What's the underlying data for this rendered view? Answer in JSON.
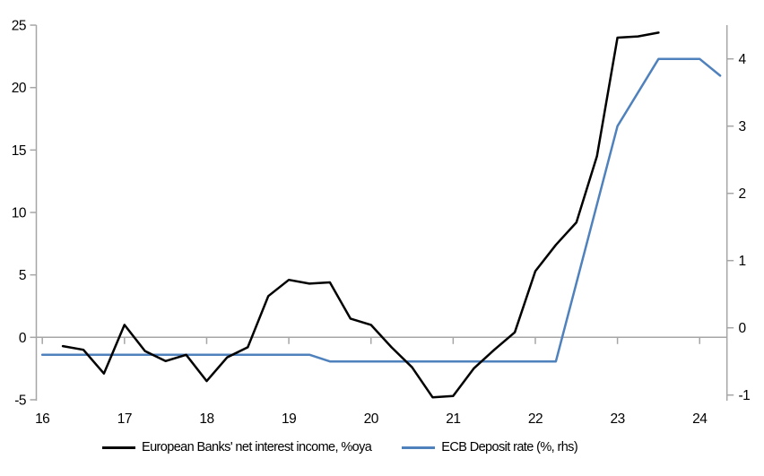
{
  "chart_data": {
    "type": "line",
    "title": "",
    "x_axis": {
      "tick_labels": [
        "16",
        "17",
        "18",
        "19",
        "20",
        "21",
        "22",
        "23",
        "24"
      ],
      "tick_values": [
        16,
        17,
        18,
        19,
        20,
        21,
        22,
        23,
        24
      ],
      "range": [
        16,
        24.4
      ]
    },
    "left_axis": {
      "tick_labels": [
        "25",
        "20",
        "15",
        "10",
        "5",
        "0",
        "-5"
      ],
      "tick_values": [
        25,
        20,
        15,
        10,
        5,
        0,
        -5
      ],
      "range": [
        -5,
        25
      ]
    },
    "right_axis": {
      "tick_labels": [
        "4",
        "3",
        "2",
        "1",
        "0",
        "-1"
      ],
      "tick_values": [
        4,
        3,
        2,
        1,
        0,
        -1
      ],
      "range": [
        -1.1,
        4.5
      ]
    },
    "zero_gridline": true,
    "grid": "off",
    "legend_position": "bottom",
    "series": [
      {
        "name": "European Banks' net interest income, %oya",
        "axis": "left",
        "color": "#000000",
        "points": [
          [
            16.25,
            -0.7
          ],
          [
            16.5,
            -1.0
          ],
          [
            16.75,
            -2.9
          ],
          [
            17.0,
            1.0
          ],
          [
            17.25,
            -1.1
          ],
          [
            17.5,
            -1.9
          ],
          [
            17.75,
            -1.4
          ],
          [
            18.0,
            -3.5
          ],
          [
            18.25,
            -1.6
          ],
          [
            18.5,
            -0.8
          ],
          [
            18.75,
            3.3
          ],
          [
            19.0,
            4.6
          ],
          [
            19.25,
            4.3
          ],
          [
            19.5,
            4.4
          ],
          [
            19.75,
            1.5
          ],
          [
            20.0,
            1.0
          ],
          [
            20.25,
            -0.8
          ],
          [
            20.5,
            -2.4
          ],
          [
            20.75,
            -4.8
          ],
          [
            21.0,
            -4.7
          ],
          [
            21.25,
            -2.5
          ],
          [
            21.5,
            -1.0
          ],
          [
            21.75,
            0.4
          ],
          [
            22.0,
            5.3
          ],
          [
            22.25,
            7.4
          ],
          [
            22.5,
            9.2
          ],
          [
            22.75,
            14.5
          ],
          [
            23.0,
            24.0
          ],
          [
            23.25,
            24.1
          ],
          [
            23.5,
            24.4
          ]
        ]
      },
      {
        "name": "ECB Deposit rate (%, rhs)",
        "axis": "right",
        "color": "#4f81bd",
        "points": [
          [
            16.0,
            -0.4
          ],
          [
            19.25,
            -0.4
          ],
          [
            19.5,
            -0.5
          ],
          [
            22.25,
            -0.5
          ],
          [
            23.0,
            3.0
          ],
          [
            23.5,
            4.0
          ],
          [
            24.0,
            4.0
          ],
          [
            24.25,
            3.75
          ]
        ]
      }
    ]
  },
  "colors": {
    "axis": "#a6a6a6",
    "background": "#ffffff",
    "text": "#000000",
    "series_nii": "#000000",
    "series_depo": "#4f81bd"
  }
}
